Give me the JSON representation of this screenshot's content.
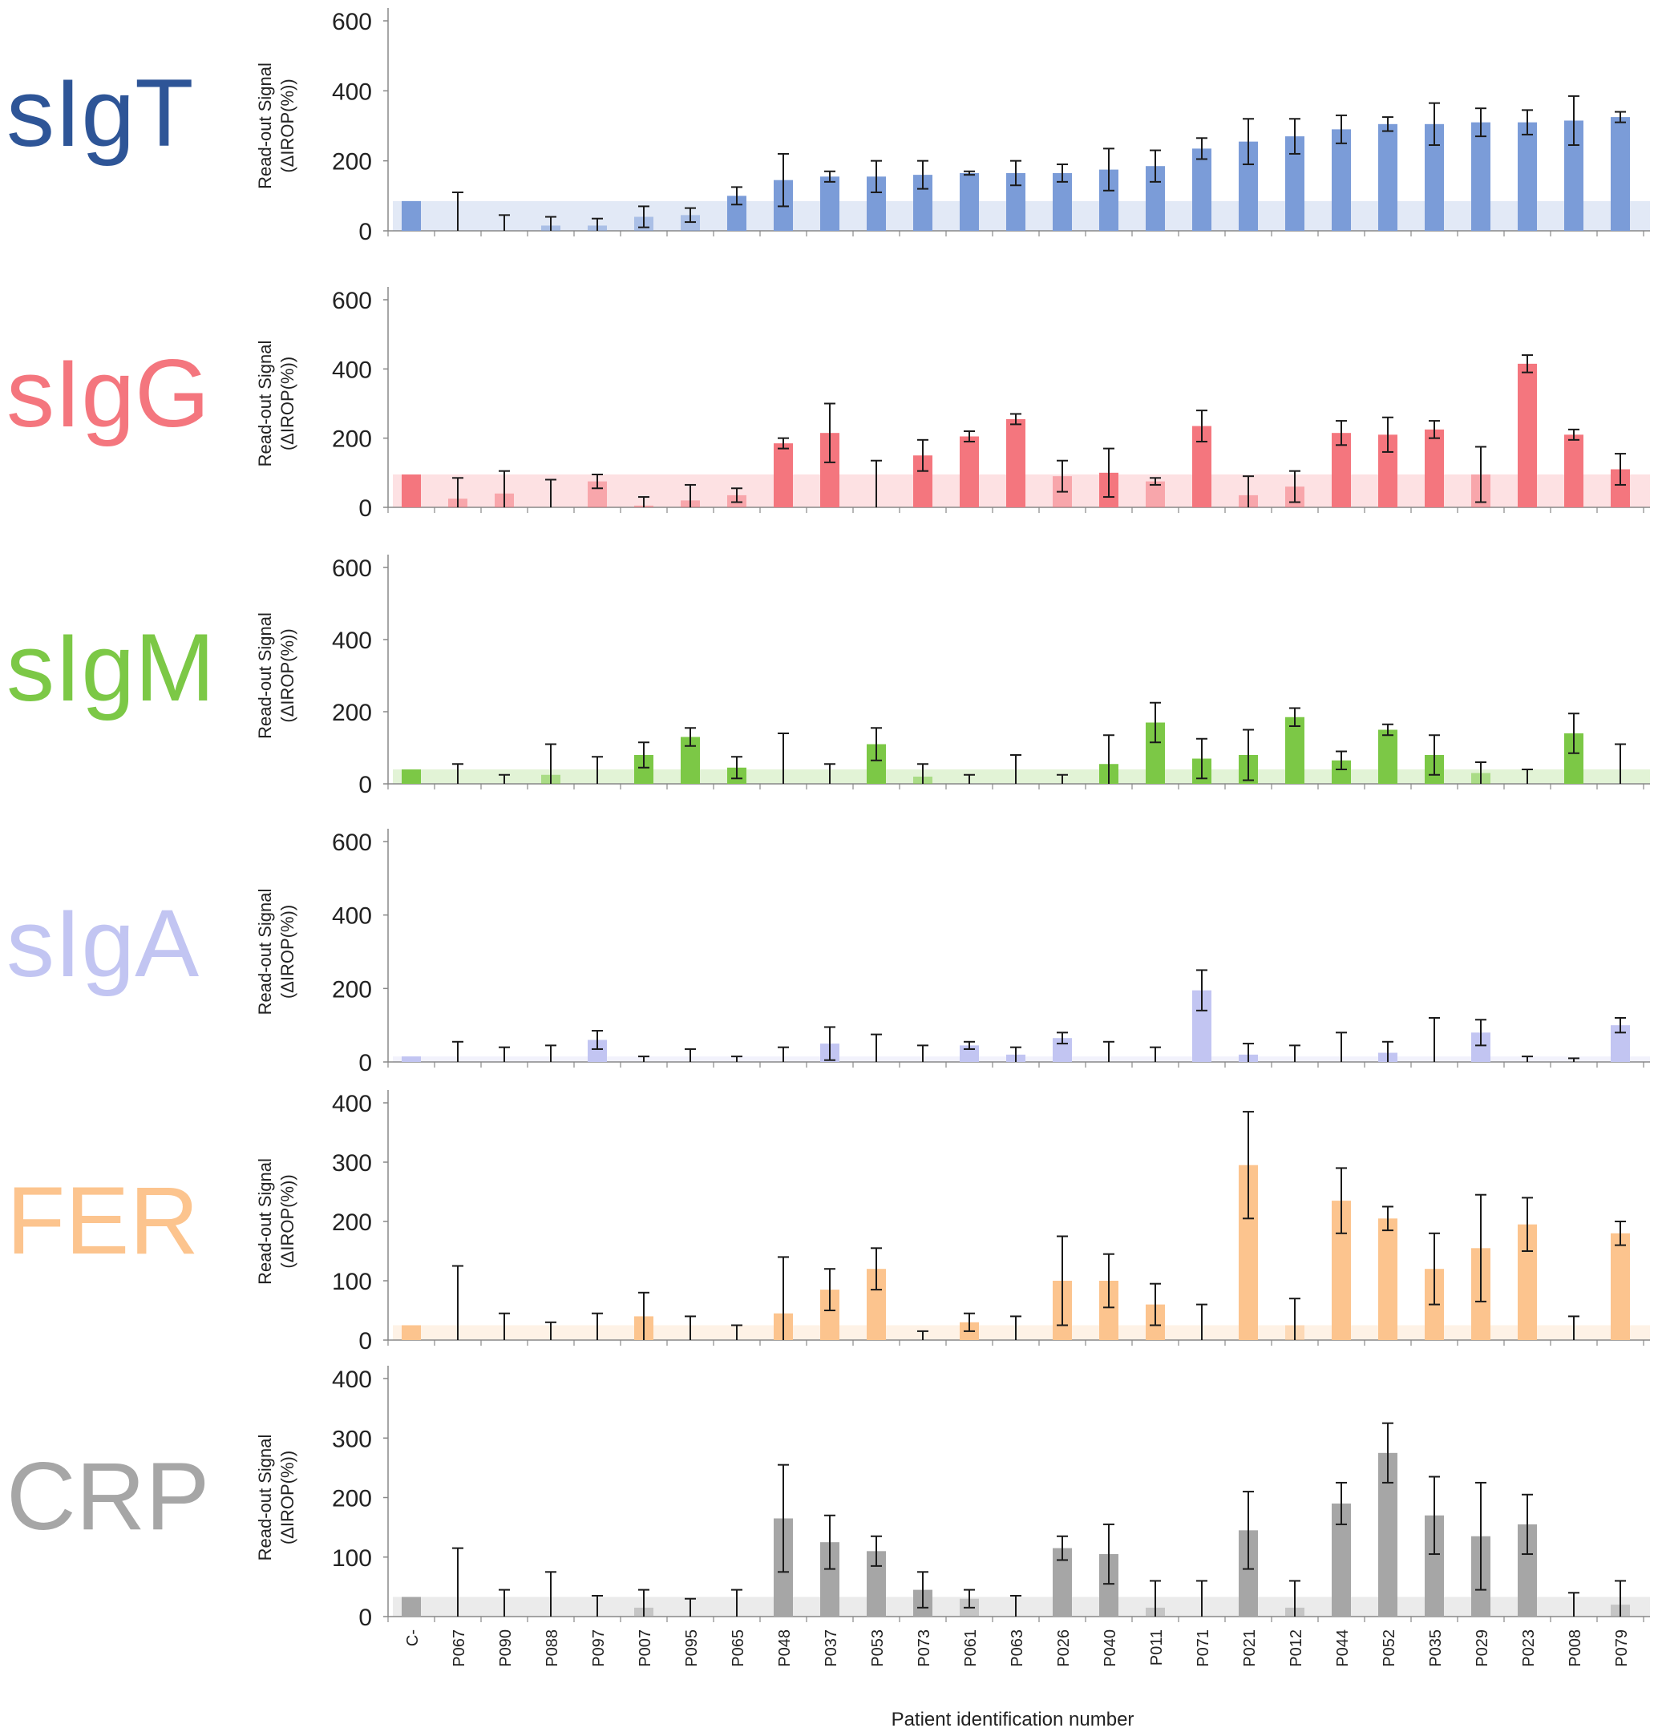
{
  "chart_data": {
    "type": "bar",
    "xlabel": "Patient identification number",
    "ylabel_line1": "Read-out Signal",
    "ylabel_line2": "(ΔIROP(%))",
    "categories": [
      "C-",
      "P067",
      "P090",
      "P088",
      "P097",
      "P007",
      "P095",
      "P065",
      "P048",
      "P037",
      "P053",
      "P073",
      "P061",
      "P063",
      "P026",
      "P040",
      "P011",
      "P071",
      "P021",
      "P012",
      "P044",
      "P052",
      "P035",
      "P029",
      "P023",
      "P008",
      "P079"
    ],
    "panels": [
      {
        "name": "sIgT",
        "color": "#2e5597",
        "bar_color": "#7b9cd8",
        "ylim": [
          0,
          600
        ],
        "yticks": [
          0,
          200,
          400,
          600
        ],
        "threshold": 85,
        "values": [
          85,
          0,
          0,
          15,
          15,
          40,
          45,
          100,
          145,
          155,
          155,
          160,
          165,
          165,
          165,
          175,
          185,
          235,
          255,
          270,
          290,
          305,
          305,
          310,
          310,
          315,
          325
        ],
        "errors": [
          0,
          110,
          45,
          25,
          20,
          30,
          20,
          25,
          75,
          15,
          45,
          40,
          5,
          35,
          25,
          60,
          45,
          30,
          65,
          50,
          40,
          20,
          60,
          40,
          35,
          70,
          15
        ]
      },
      {
        "name": "sIgG",
        "color": "#f4767e",
        "bar_color": "#f4767e",
        "ylim": [
          0,
          600
        ],
        "yticks": [
          0,
          200,
          400,
          600
        ],
        "threshold": 95,
        "values": [
          95,
          25,
          40,
          0,
          75,
          5,
          20,
          35,
          185,
          215,
          0,
          150,
          205,
          255,
          90,
          100,
          75,
          235,
          35,
          60,
          215,
          210,
          225,
          95,
          415,
          210,
          110
        ],
        "errors": [
          0,
          60,
          65,
          80,
          20,
          25,
          45,
          20,
          15,
          85,
          135,
          45,
          15,
          15,
          45,
          70,
          10,
          45,
          55,
          45,
          35,
          50,
          25,
          80,
          25,
          15,
          45
        ]
      },
      {
        "name": "sIgM",
        "color": "#7cc846",
        "bar_color": "#7cc846",
        "ylim": [
          0,
          600
        ],
        "yticks": [
          0,
          200,
          400,
          600
        ],
        "threshold": 40,
        "values": [
          40,
          0,
          0,
          25,
          0,
          80,
          130,
          45,
          0,
          0,
          110,
          20,
          0,
          0,
          0,
          55,
          170,
          70,
          80,
          185,
          65,
          150,
          80,
          30,
          0,
          140,
          0
        ],
        "errors": [
          0,
          55,
          25,
          85,
          75,
          35,
          25,
          30,
          140,
          55,
          45,
          35,
          25,
          80,
          25,
          80,
          55,
          55,
          70,
          25,
          25,
          15,
          55,
          30,
          40,
          55,
          110
        ]
      },
      {
        "name": "sIgA",
        "color": "#c2c5f2",
        "bar_color": "#c2c5f2",
        "ylim": [
          0,
          600
        ],
        "yticks": [
          0,
          200,
          400,
          600
        ],
        "threshold": 15,
        "values": [
          15,
          0,
          0,
          0,
          60,
          0,
          0,
          0,
          0,
          50,
          0,
          0,
          45,
          20,
          65,
          0,
          0,
          195,
          20,
          0,
          0,
          25,
          0,
          80,
          0,
          0,
          100
        ],
        "errors": [
          0,
          55,
          40,
          45,
          25,
          15,
          35,
          15,
          40,
          45,
          75,
          45,
          10,
          20,
          15,
          55,
          40,
          55,
          30,
          45,
          80,
          30,
          120,
          35,
          15,
          10,
          20
        ]
      },
      {
        "name": "FER",
        "color": "#fcc48e",
        "bar_color": "#fcc48e",
        "ylim": [
          0,
          400
        ],
        "yticks": [
          0,
          100,
          200,
          300,
          400
        ],
        "threshold": 25,
        "values": [
          25,
          0,
          0,
          0,
          0,
          40,
          0,
          0,
          45,
          85,
          120,
          0,
          30,
          0,
          100,
          100,
          60,
          0,
          295,
          25,
          235,
          205,
          120,
          155,
          195,
          0,
          180
        ],
        "errors": [
          0,
          125,
          45,
          30,
          45,
          40,
          40,
          25,
          95,
          35,
          35,
          15,
          15,
          40,
          75,
          45,
          35,
          60,
          90,
          45,
          55,
          20,
          60,
          90,
          45,
          40,
          20
        ]
      },
      {
        "name": "CRP",
        "color": "#a6a6a6",
        "bar_color": "#a6a6a6",
        "ylim": [
          0,
          400
        ],
        "yticks": [
          0,
          100,
          200,
          300,
          400
        ],
        "threshold": 33,
        "values": [
          33,
          0,
          0,
          0,
          0,
          15,
          0,
          0,
          165,
          125,
          110,
          45,
          30,
          0,
          115,
          105,
          15,
          0,
          145,
          15,
          190,
          275,
          170,
          135,
          155,
          0,
          20
        ],
        "errors": [
          0,
          115,
          45,
          75,
          35,
          30,
          30,
          45,
          90,
          45,
          25,
          30,
          15,
          35,
          20,
          50,
          45,
          60,
          65,
          45,
          35,
          50,
          65,
          90,
          50,
          40,
          40
        ]
      }
    ]
  }
}
